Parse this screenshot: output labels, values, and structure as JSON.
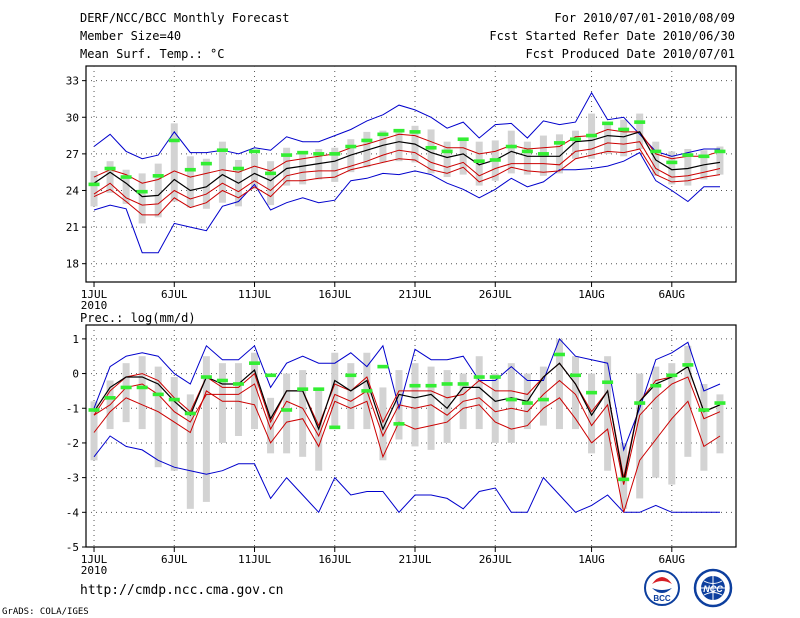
{
  "header": {
    "title": "DERF/NCC/BCC Monthly Forecast",
    "member_size": "Member Size=40",
    "variable_top": "Mean Surf. Temp.: °C",
    "period": "For 2010/07/01-2010/08/09",
    "started": "Fcst Started Refer Date 2010/06/30",
    "produced": "Fcst Produced Date 2010/07/01"
  },
  "footer": {
    "url": "http://cmdp.ncc.cma.gov.cn",
    "credit": "GrADS: COLA/IGES",
    "logo_bcc": "BCC",
    "logo_ncc": "NCC"
  },
  "colors": {
    "envelope": "#0000cc",
    "spread": "#cc0000",
    "mean": "#000000",
    "box": "#d3d3d3",
    "marker": "#33ee33",
    "grid": "#555555"
  },
  "chart_data": [
    {
      "type": "line",
      "title": "Mean Surf. Temp.: °C",
      "x_tick_labels": [
        "1JUL",
        "6JUL",
        "11JUL",
        "16JUL",
        "21JUL",
        "26JUL",
        "1AUG",
        "6AUG"
      ],
      "x_tick_days": [
        1,
        6,
        11,
        16,
        21,
        26,
        32,
        37
      ],
      "year_label": "2010",
      "xlim": [
        0.5,
        41
      ],
      "ylim": [
        16.5,
        34.2
      ],
      "y_ticks": [
        18,
        21,
        24,
        27,
        30,
        33
      ],
      "days": [
        1,
        2,
        3,
        4,
        5,
        6,
        7,
        8,
        9,
        10,
        11,
        12,
        13,
        14,
        15,
        16,
        17,
        18,
        19,
        20,
        21,
        22,
        23,
        24,
        25,
        26,
        27,
        28,
        29,
        30,
        31,
        32,
        33,
        34,
        35,
        36,
        37,
        38,
        39,
        40
      ],
      "series": [
        {
          "name": "max",
          "values": [
            27.6,
            28.6,
            27.2,
            26.6,
            26.9,
            28.8,
            27.1,
            27.1,
            27.3,
            27.0,
            27.5,
            27.3,
            28.4,
            28.0,
            28.0,
            28.5,
            29.0,
            29.7,
            30.2,
            31.0,
            30.6,
            30.0,
            29.1,
            29.6,
            28.3,
            29.4,
            29.5,
            28.3,
            29.7,
            29.4,
            29.6,
            32.0,
            29.8,
            30.0,
            28.6,
            27.2,
            26.8,
            27.1,
            27.4,
            27.4
          ]
        },
        {
          "name": "upper",
          "values": [
            25.1,
            25.7,
            25.3,
            24.6,
            24.9,
            25.6,
            25.1,
            25.4,
            25.7,
            25.5,
            26.0,
            25.6,
            26.4,
            26.6,
            26.8,
            27.0,
            27.5,
            27.8,
            28.2,
            28.6,
            28.5,
            28.0,
            27.5,
            27.5,
            27.0,
            27.2,
            27.7,
            27.4,
            27.5,
            27.6,
            28.4,
            28.5,
            29.0,
            28.8,
            28.8,
            27.0,
            26.6,
            26.8,
            26.8,
            27.2
          ]
        },
        {
          "name": "mean",
          "values": [
            24.6,
            25.5,
            24.6,
            23.5,
            23.6,
            24.9,
            24.0,
            24.3,
            25.3,
            24.6,
            25.4,
            24.8,
            25.8,
            26.0,
            26.2,
            26.4,
            26.9,
            27.3,
            27.7,
            28.0,
            27.8,
            27.1,
            26.7,
            27.0,
            26.1,
            26.5,
            27.2,
            26.8,
            26.8,
            26.8,
            28.0,
            28.1,
            28.5,
            28.4,
            28.8,
            26.5,
            25.7,
            25.8,
            26.1,
            26.3
          ]
        },
        {
          "name": "lower",
          "values": [
            23.7,
            24.6,
            23.4,
            22.8,
            22.9,
            24.0,
            23.3,
            23.7,
            24.6,
            23.9,
            24.8,
            24.0,
            25.2,
            25.5,
            25.6,
            25.6,
            26.0,
            26.4,
            26.9,
            27.3,
            27.1,
            26.3,
            25.9,
            26.3,
            25.2,
            25.8,
            26.2,
            26.2,
            26.2,
            26.1,
            27.2,
            27.4,
            27.9,
            27.8,
            28.0,
            25.8,
            25.1,
            25.2,
            25.5,
            25.8
          ]
        },
        {
          "name": "spread_low",
          "values": [
            23.5,
            24.1,
            23.1,
            22.0,
            22.0,
            23.4,
            22.6,
            23.0,
            24.0,
            23.4,
            24.3,
            23.5,
            24.8,
            24.8,
            25.0,
            25.1,
            25.7,
            26.0,
            26.3,
            26.6,
            26.5,
            25.7,
            25.4,
            25.9,
            24.7,
            25.2,
            25.9,
            25.6,
            25.5,
            25.6,
            26.6,
            26.9,
            27.2,
            27.1,
            27.4,
            25.3,
            24.7,
            24.8,
            25.1,
            25.3
          ]
        },
        {
          "name": "min",
          "values": [
            22.4,
            22.8,
            22.5,
            18.9,
            18.9,
            21.3,
            21.0,
            20.7,
            22.7,
            23.1,
            24.5,
            22.4,
            23.0,
            23.4,
            23.0,
            23.2,
            24.8,
            25.0,
            25.4,
            25.3,
            25.6,
            25.3,
            24.6,
            24.1,
            23.4,
            24.1,
            25.0,
            24.3,
            24.7,
            25.7,
            25.7,
            25.8,
            26.0,
            26.4,
            27.1,
            24.8,
            24.0,
            23.1,
            24.3,
            24.3
          ]
        },
        {
          "name": "box_top",
          "values": [
            25.6,
            26.4,
            25.7,
            25.4,
            26.2,
            29.5,
            26.8,
            26.6,
            28.0,
            26.5,
            27.0,
            26.4,
            27.5,
            27.2,
            27.4,
            27.5,
            28.2,
            28.8,
            28.9,
            28.9,
            29.3,
            29.0,
            28.0,
            28.2,
            28.0,
            28.1,
            28.9,
            28.0,
            28.5,
            28.6,
            28.9,
            30.3,
            29.6,
            29.8,
            30.3,
            28.0,
            27.2,
            27.4,
            27.3,
            27.6
          ]
        },
        {
          "name": "box_bottom",
          "values": [
            22.7,
            23.8,
            22.9,
            21.3,
            21.8,
            23.1,
            22.6,
            22.5,
            23.0,
            22.7,
            24.1,
            22.8,
            24.4,
            24.5,
            24.9,
            24.7,
            25.5,
            25.9,
            26.3,
            26.4,
            26.3,
            25.4,
            25.1,
            25.3,
            24.4,
            24.8,
            25.4,
            25.3,
            25.2,
            25.4,
            26.6,
            26.6,
            27.0,
            26.8,
            27.4,
            25.2,
            24.5,
            24.4,
            24.9,
            25.3
          ]
        },
        {
          "name": "marker",
          "values": [
            24.5,
            25.8,
            25.1,
            23.9,
            25.2,
            28.1,
            25.7,
            26.2,
            27.3,
            25.8,
            27.2,
            25.4,
            26.9,
            27.1,
            27.0,
            27.0,
            27.6,
            28.1,
            28.6,
            28.9,
            28.8,
            27.5,
            27.2,
            28.2,
            26.4,
            26.5,
            27.6,
            27.2,
            27.0,
            27.9,
            28.2,
            28.5,
            29.5,
            29.0,
            29.6,
            27.2,
            26.3,
            26.9,
            26.8,
            27.2
          ]
        }
      ]
    },
    {
      "type": "line",
      "title": "Prec.: log(mm/d)",
      "x_tick_labels": [
        "1JUL",
        "6JUL",
        "11JUL",
        "16JUL",
        "21JUL",
        "26JUL",
        "1AUG",
        "6AUG"
      ],
      "x_tick_days": [
        1,
        6,
        11,
        16,
        21,
        26,
        32,
        37
      ],
      "year_label": "2010",
      "xlim": [
        0.5,
        41
      ],
      "ylim": [
        -5,
        1.4
      ],
      "y_ticks": [
        -5,
        -4,
        -3,
        -2,
        -1,
        0,
        1
      ],
      "days": [
        1,
        2,
        3,
        4,
        5,
        6,
        7,
        8,
        9,
        10,
        11,
        12,
        13,
        14,
        15,
        16,
        17,
        18,
        19,
        20,
        21,
        22,
        23,
        24,
        25,
        26,
        27,
        28,
        29,
        30,
        31,
        32,
        33,
        34,
        35,
        36,
        37,
        38,
        39,
        40
      ],
      "series": [
        {
          "name": "max",
          "values": [
            -1.0,
            0.2,
            0.5,
            0.6,
            0.5,
            0.0,
            -0.3,
            0.8,
            0.4,
            0.4,
            0.8,
            -0.4,
            0.3,
            0.5,
            0.3,
            0.3,
            0.6,
            0.2,
            0.8,
            -1.0,
            0.7,
            0.4,
            0.4,
            0.5,
            -0.2,
            -0.2,
            0.2,
            -0.2,
            -0.2,
            1.0,
            0.5,
            0.4,
            0.3,
            -2.2,
            -1.0,
            0.4,
            0.6,
            0.9,
            -0.5,
            -0.3
          ]
        },
        {
          "name": "upper",
          "values": [
            -1.2,
            -0.5,
            -0.1,
            0.0,
            -0.2,
            -0.7,
            -1.1,
            -0.1,
            -0.4,
            -0.4,
            0.0,
            -1.4,
            -0.5,
            -0.5,
            -1.5,
            -0.3,
            -0.5,
            -0.1,
            -1.4,
            -0.5,
            -0.5,
            -0.5,
            -0.7,
            -0.6,
            -0.2,
            -0.5,
            -0.5,
            -0.6,
            -0.1,
            0.3,
            -0.3,
            -1.1,
            -0.5,
            -3.0,
            -0.8,
            -0.2,
            -0.1,
            0.2,
            -1.1,
            -0.9
          ]
        },
        {
          "name": "mean",
          "values": [
            -1.1,
            -0.4,
            -0.1,
            -0.1,
            -0.3,
            -0.8,
            -1.2,
            -0.1,
            -0.3,
            -0.3,
            0.1,
            -1.3,
            -0.5,
            -0.5,
            -1.6,
            -0.2,
            -0.5,
            -0.2,
            -1.6,
            -0.6,
            -0.7,
            -0.6,
            -1.0,
            -0.4,
            -0.4,
            -0.8,
            -0.7,
            -0.8,
            -0.1,
            0.3,
            -0.3,
            -1.2,
            -0.5,
            -3.1,
            -0.8,
            -0.3,
            -0.1,
            0.2,
            -1.1,
            -0.9
          ]
        },
        {
          "name": "lower",
          "values": [
            -1.2,
            -0.9,
            -0.4,
            -0.3,
            -0.6,
            -1.1,
            -1.4,
            -0.6,
            -0.6,
            -0.6,
            -0.3,
            -1.6,
            -0.8,
            -1.0,
            -1.8,
            -0.6,
            -0.8,
            -0.5,
            -1.8,
            -0.9,
            -1.0,
            -0.9,
            -1.2,
            -0.8,
            -0.7,
            -1.1,
            -1.0,
            -1.1,
            -0.6,
            -0.2,
            -0.6,
            -1.5,
            -0.9,
            -3.2,
            -1.2,
            -0.7,
            -0.3,
            -0.1,
            -1.3,
            -1.1
          ]
        },
        {
          "name": "spread_low",
          "values": [
            -1.7,
            -1.1,
            -0.7,
            -0.9,
            -1.1,
            -1.4,
            -1.7,
            -0.5,
            -0.8,
            -0.8,
            -0.9,
            -2.0,
            -1.4,
            -1.3,
            -2.1,
            -0.8,
            -1.0,
            -0.8,
            -2.4,
            -1.4,
            -1.6,
            -1.5,
            -1.4,
            -1.0,
            -0.9,
            -1.4,
            -1.6,
            -1.5,
            -1.0,
            -0.7,
            -1.3,
            -2.0,
            -1.6,
            -4.0,
            -2.5,
            -1.9,
            -1.3,
            -0.8,
            -2.1,
            -1.8
          ]
        },
        {
          "name": "min",
          "values": [
            -2.4,
            -1.8,
            -2.1,
            -2.2,
            -2.5,
            -2.7,
            -2.8,
            -2.9,
            -2.8,
            -2.6,
            -2.6,
            -3.6,
            -3.0,
            -3.5,
            -4.0,
            -3.0,
            -3.5,
            -3.4,
            -3.4,
            -4.0,
            -3.5,
            -3.5,
            -3.6,
            -3.9,
            -3.4,
            -3.3,
            -4.0,
            -4.0,
            -3.0,
            -3.5,
            -4.0,
            -3.8,
            -3.5,
            -4.0,
            -4.0,
            -3.8,
            -4.0,
            -4.0,
            -4.0,
            -4.0
          ]
        },
        {
          "name": "box_top",
          "values": [
            -0.8,
            -0.2,
            0.3,
            0.5,
            0.2,
            -0.1,
            -0.6,
            0.5,
            0.3,
            0.3,
            0.6,
            -0.7,
            0.0,
            0.1,
            -0.5,
            0.6,
            0.3,
            0.6,
            -0.4,
            0.1,
            0.3,
            0.2,
            0.1,
            0.0,
            0.5,
            0.0,
            0.3,
            0.0,
            0.2,
            1.0,
            0.5,
            0.0,
            0.5,
            -2.0,
            0.0,
            0.2,
            0.3,
            0.8,
            -0.3,
            -0.6
          ]
        },
        {
          "name": "box_bottom",
          "values": [
            -2.5,
            -1.6,
            -1.4,
            -1.6,
            -2.7,
            -2.8,
            -3.9,
            -3.7,
            -2.0,
            -1.8,
            -1.6,
            -2.3,
            -2.3,
            -2.4,
            -2.8,
            -1.6,
            -1.6,
            -1.6,
            -2.5,
            -1.9,
            -2.1,
            -2.2,
            -2.0,
            -1.6,
            -1.6,
            -2.0,
            -2.0,
            -1.6,
            -1.5,
            -1.6,
            -1.6,
            -2.3,
            -2.8,
            -3.9,
            -3.6,
            -3.0,
            -3.2,
            -2.4,
            -2.8,
            -2.3
          ]
        },
        {
          "name": "marker",
          "values": [
            -1.05,
            -0.7,
            -0.4,
            -0.4,
            -0.6,
            -0.75,
            -1.15,
            -0.1,
            -0.2,
            -0.3,
            0.3,
            -0.05,
            -1.05,
            -0.45,
            -0.45,
            -1.55,
            -0.05,
            -0.5,
            0.2,
            -1.45,
            -0.35,
            -0.35,
            -0.3,
            -0.3,
            -0.1,
            -0.1,
            -0.75,
            -0.85,
            -0.75,
            0.55,
            -0.05,
            -0.55,
            -0.25,
            -3.05,
            -0.85,
            -0.35,
            -0.05,
            0.25,
            -1.05,
            -0.85
          ]
        }
      ]
    }
  ]
}
